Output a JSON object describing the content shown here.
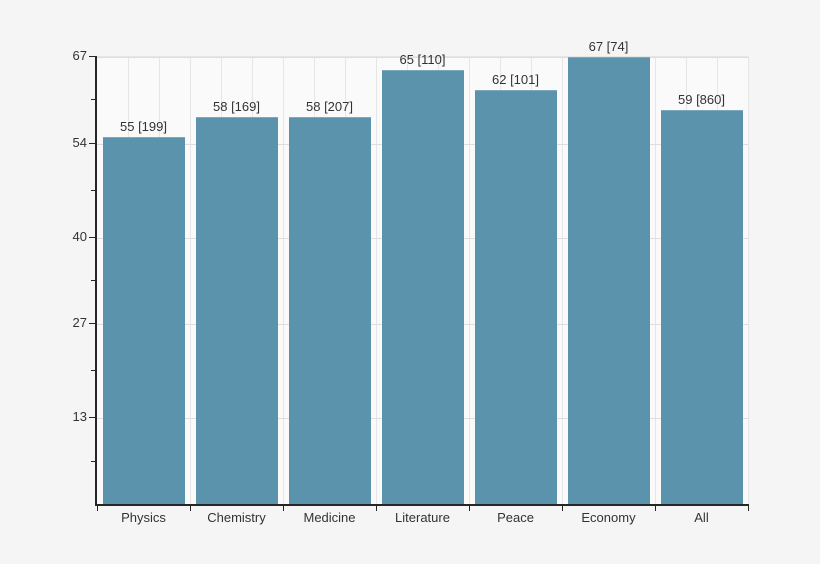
{
  "chart_data": {
    "type": "bar",
    "title": "",
    "xlabel": "",
    "ylabel": "",
    "categories": [
      "Physics",
      "Chemistry",
      "Medicine",
      "Literature",
      "Peace",
      "Economy",
      "All"
    ],
    "values": [
      55,
      58,
      58,
      65,
      62,
      67,
      59
    ],
    "bracket_counts": [
      199,
      169,
      207,
      110,
      101,
      74,
      860
    ],
    "bar_labels": [
      "55 [199]",
      "58 [169]",
      "58 [207]",
      "65 [110]",
      "62 [101]",
      "67 [74]",
      "59 [860]"
    ],
    "ylim": [
      0,
      67
    ],
    "y_ticks": [
      67,
      54,
      40,
      27,
      13
    ],
    "y_minor_ticks": [
      60.5,
      47,
      33.5,
      20,
      6.5
    ],
    "grid": true,
    "legend": false,
    "colors": {
      "bar": "#5b92ac",
      "bar_top_edge": "#7da9bf",
      "plot_background": "#fafafa",
      "page_background": "#f5f5f5",
      "gridline_vertical": "#e6e6e6",
      "gridline_horizontal": "#dedede",
      "axis": "#262626",
      "text": "#333333"
    }
  }
}
